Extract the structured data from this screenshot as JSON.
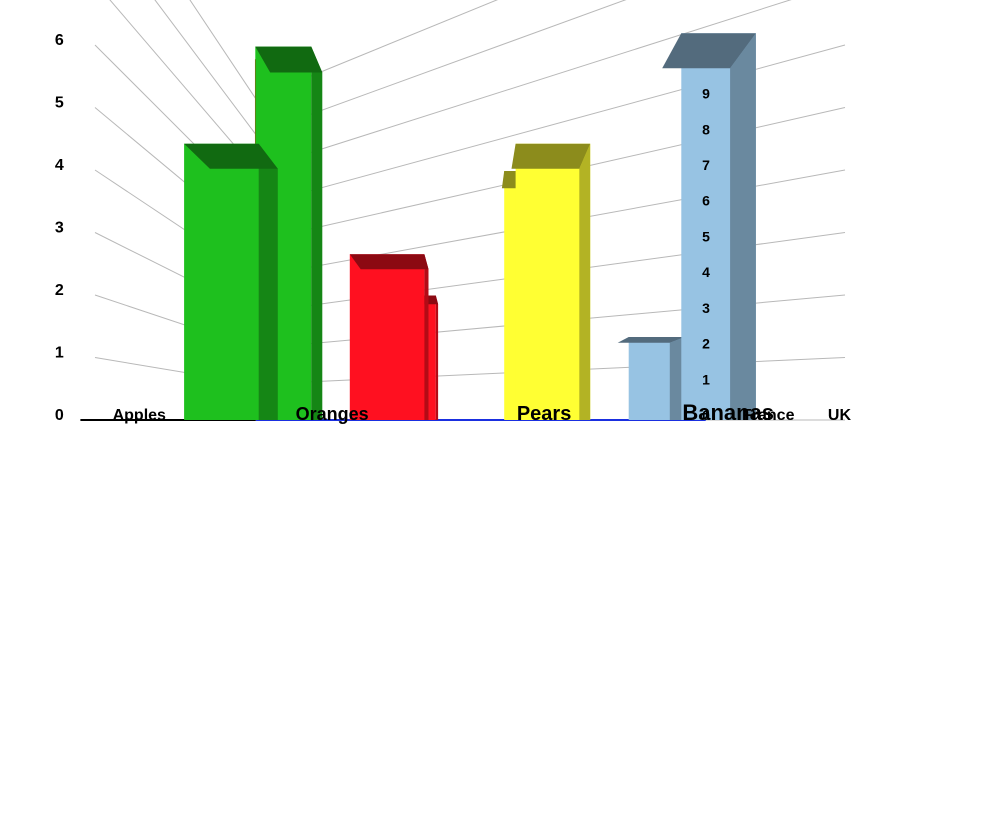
{
  "chart_data": {
    "type": "bar",
    "subtype": "3d-grouped-bar",
    "title": "",
    "xlabel": "",
    "ylabel": "",
    "categories": [
      "Apples",
      "Oranges",
      "Pears",
      "Bananas"
    ],
    "series": [
      {
        "name": "UK",
        "values": [
          5,
          3,
          5,
          7
        ]
      },
      {
        "name": "France",
        "values": [
          9,
          3,
          6,
          2
        ]
      }
    ],
    "z_tick_labels": [
      "0",
      "1",
      "2",
      "3",
      "4",
      "5",
      "6",
      "7",
      "8",
      "9"
    ],
    "ylim": [
      0,
      9
    ],
    "grid": true,
    "colors": {
      "Apples": "#1ec01e",
      "Oranges": "#ff1020",
      "Pears": "#ffff33",
      "Bananas": "#97c3e3",
      "axis_x": "#000000",
      "axis_y": "#1a2fe0",
      "axis_z": "#e00000",
      "grid": "#b8b8b8"
    }
  }
}
